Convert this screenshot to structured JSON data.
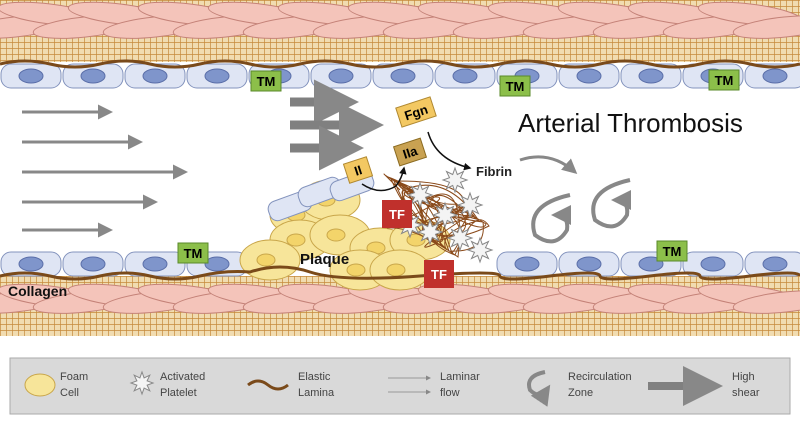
{
  "title": "Arterial Thrombosis",
  "labels": {
    "tm": [
      "TM",
      "TM",
      "TM",
      "TM"
    ],
    "fgn": "Fgn",
    "ii": "II",
    "iia": "IIa",
    "fibrin": "Fibrin",
    "tf": [
      "TF",
      "TF"
    ],
    "plaque": "Plaque",
    "collagen": "Collagen"
  },
  "legend": [
    {
      "lines": [
        "Foam",
        "Cell"
      ]
    },
    {
      "lines": [
        "Activated",
        "Platelet"
      ]
    },
    {
      "lines": [
        "Elastic",
        "Lamina"
      ]
    },
    {
      "lines": [
        "Laminar",
        "flow"
      ]
    },
    {
      "lines": [
        "Recirculation",
        "Zone"
      ]
    },
    {
      "lines": [
        "High",
        "shear"
      ]
    }
  ]
}
